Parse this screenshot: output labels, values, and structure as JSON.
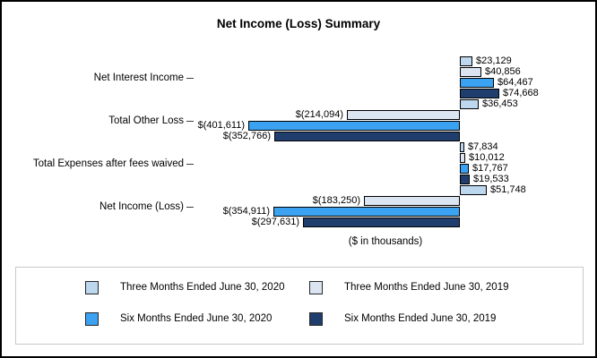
{
  "title": "Net Income (Loss) Summary",
  "axis_note": "($ in thousands)",
  "chart_data": {
    "type": "bar",
    "orientation": "horizontal",
    "title": "Net Income (Loss) Summary",
    "xlabel": "($ in thousands)",
    "ylabel": "",
    "xlim": [
      -420000,
      120000
    ],
    "grid": false,
    "legend_position": "bottom",
    "categories": [
      "Net Interest Income",
      "Total Other Loss",
      "Total Expenses after fees waived",
      "Net Income (Loss)"
    ],
    "series": [
      {
        "name": "Three Months Ended June 30, 2020",
        "color": "#BDD7EE",
        "values": [
          23129,
          36453,
          7834,
          51748
        ],
        "labels": [
          "$23,129",
          "$36,453",
          "$7,834",
          "$51,748"
        ]
      },
      {
        "name": "Three Months Ended June 30, 2019",
        "color": "#DBE5F1",
        "values": [
          40856,
          -214094,
          10012,
          -183250
        ],
        "labels": [
          "$40,856",
          "$(214,094)",
          "$10,012",
          "$(183,250)"
        ]
      },
      {
        "name": "Six Months Ended June 30, 2020",
        "color": "#3BA2F1",
        "values": [
          64467,
          -401611,
          17767,
          -354911
        ],
        "labels": [
          "$64,467",
          "$(401,611)",
          "$17,767",
          "$(354,911)"
        ]
      },
      {
        "name": "Six Months Ended June 30, 2019",
        "color": "#1F3E6E",
        "values": [
          74668,
          -352766,
          19533,
          -297631
        ],
        "labels": [
          "$74,668",
          "$(352,766)",
          "$19,533",
          "$(297,631)"
        ]
      }
    ]
  },
  "legend": {
    "items": [
      {
        "label": "Three Months Ended June 30, 2020",
        "color": "#BDD7EE"
      },
      {
        "label": "Three Months Ended June 30, 2019",
        "color": "#DBE5F1"
      },
      {
        "label": "Six Months Ended June 30, 2020",
        "color": "#3BA2F1"
      },
      {
        "label": "Six Months Ended June 30, 2019",
        "color": "#1F3E6E"
      }
    ]
  }
}
